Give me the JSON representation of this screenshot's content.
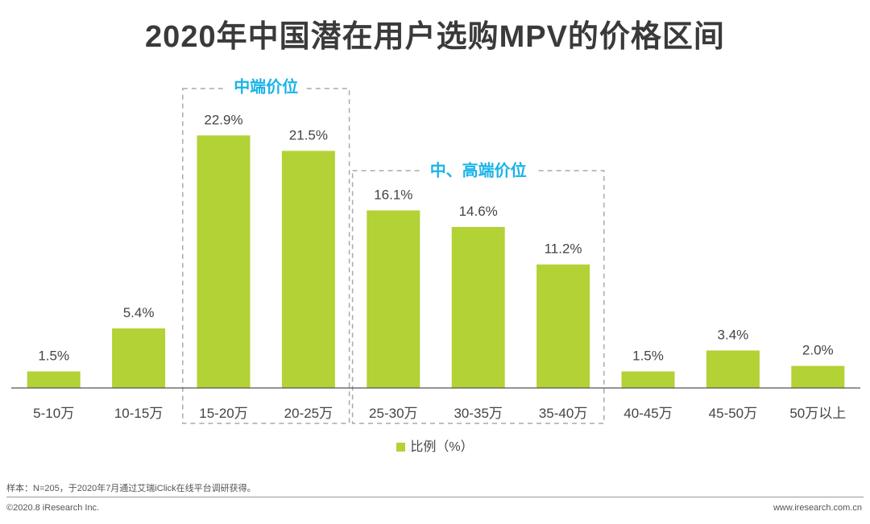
{
  "chart_data": {
    "type": "bar",
    "title": "2020年中国潜在用户选购MPV的价格区间",
    "categories": [
      "5-10万",
      "10-15万",
      "15-20万",
      "20-25万",
      "25-30万",
      "30-35万",
      "35-40万",
      "40-45万",
      "45-50万",
      "50万以上"
    ],
    "series": [
      {
        "name": "比例（%）",
        "values": [
          1.5,
          5.4,
          22.9,
          21.5,
          16.1,
          14.6,
          11.2,
          1.5,
          3.4,
          2.0
        ],
        "color": "#b2d235"
      }
    ],
    "value_labels": [
      "1.5%",
      "5.4%",
      "22.9%",
      "21.5%",
      "16.1%",
      "14.6%",
      "11.2%",
      "1.5%",
      "3.4%",
      "2.0%"
    ],
    "ylim": [
      0,
      25
    ],
    "xlabel": "",
    "ylabel": "",
    "groups": [
      {
        "label": "中端价位",
        "from": 2,
        "to": 3
      },
      {
        "label": "中、高端价位",
        "from": 4,
        "to": 6
      }
    ],
    "legend_position": "bottom-center"
  },
  "legend": {
    "label": "比例（%）"
  },
  "footnote": "样本：N=205，于2020年7月通过艾瑞iClick在线平台调研获得。",
  "copyright": "©2020.8 iResearch Inc.",
  "website": "www.iresearch.com.cn",
  "colors": {
    "bar": "#b2d235",
    "accent": "#1bb3e8",
    "axis": "#555555",
    "dash": "#aaaaaa"
  }
}
